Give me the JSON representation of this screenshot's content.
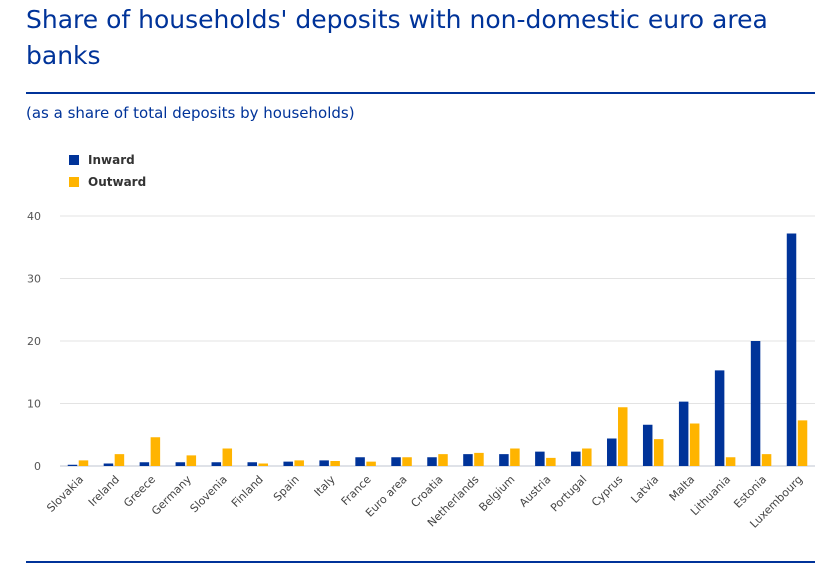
{
  "header": {
    "title": "Share of households' deposits with non-domestic euro area banks",
    "subtitle": "(as a share of total deposits by households)"
  },
  "chart_data": {
    "type": "bar",
    "title": "Share of households' deposits with non-domestic euro area banks",
    "subtitle": "(as a share of total deposits by households)",
    "xlabel": "",
    "ylabel": "",
    "ylim": [
      0,
      40
    ],
    "yticks": [
      0,
      10,
      20,
      30,
      40
    ],
    "grid": true,
    "legend": "top-left",
    "categories": [
      "Slovakia",
      "Ireland",
      "Greece",
      "Germany",
      "Slovenia",
      "Finland",
      "Spain",
      "Italy",
      "France",
      "Euro area",
      "Croatia",
      "Netherlands",
      "Belgium",
      "Austria",
      "Portugal",
      "Cyprus",
      "Latvia",
      "Malta",
      "Lithuania",
      "Estonia",
      "Luxembourg"
    ],
    "series": [
      {
        "name": "Inward",
        "color": "#003399",
        "values": [
          0.2,
          0.4,
          0.6,
          0.6,
          0.6,
          0.6,
          0.7,
          0.9,
          1.4,
          1.4,
          1.4,
          1.9,
          1.9,
          2.3,
          2.3,
          4.4,
          6.6,
          10.3,
          15.3,
          20.0,
          37.2
        ]
      },
      {
        "name": "Outward",
        "color": "#FFB400",
        "values": [
          0.9,
          1.9,
          4.6,
          1.7,
          2.8,
          0.4,
          0.9,
          0.8,
          0.7,
          1.4,
          1.9,
          2.1,
          2.8,
          1.3,
          2.8,
          9.4,
          4.3,
          6.8,
          1.4,
          1.9,
          7.3
        ]
      }
    ]
  }
}
